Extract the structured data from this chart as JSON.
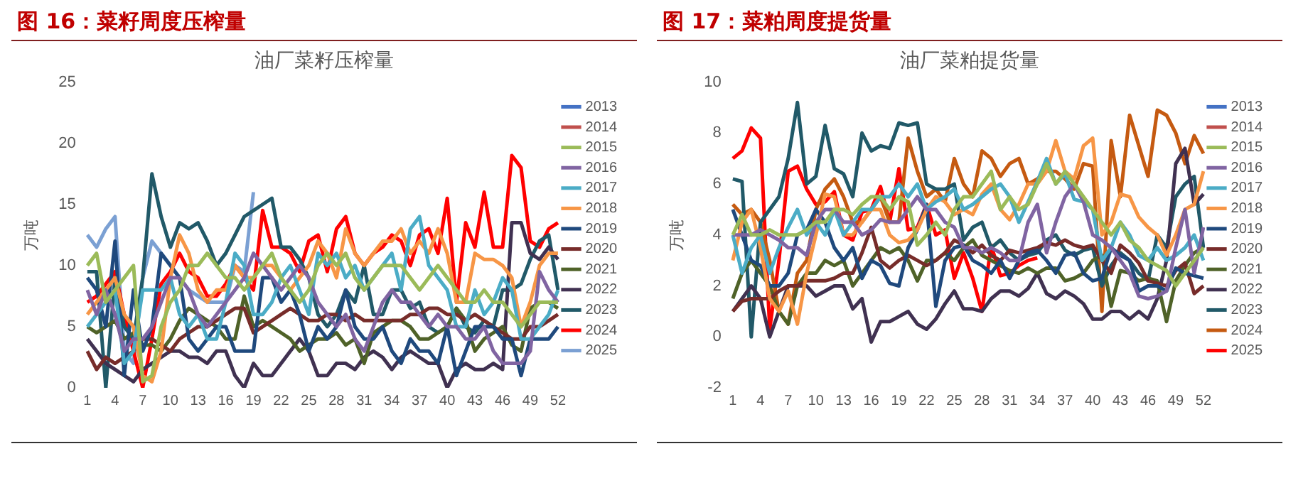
{
  "chart_data": [
    {
      "type": "line",
      "title": "油厂菜籽压榨量",
      "ylabel": "万吨",
      "annotations": [
        "图 16：菜籽周度压榨量"
      ],
      "categories": [
        "1",
        null,
        null,
        "4",
        null,
        null,
        "7",
        null,
        null,
        "10",
        null,
        null,
        "13",
        null,
        null,
        "16",
        null,
        null,
        "19",
        null,
        null,
        "22",
        null,
        null,
        "25",
        null,
        null,
        "28",
        null,
        null,
        "31",
        null,
        null,
        "34",
        null,
        null,
        "37",
        null,
        null,
        "40",
        null,
        null,
        "43",
        null,
        null,
        "46",
        null,
        null,
        "49",
        null,
        null,
        "52"
      ],
      "ylim": [
        0,
        25
      ],
      "yticks": [
        0,
        5,
        10,
        15,
        20,
        25
      ],
      "grid": false,
      "legend": "right",
      "marker": "none",
      "line_style": "solid",
      "series": [
        {
          "name": "2013",
          "color": "#4472c4",
          "values": [
            null,
            null,
            null,
            null,
            null,
            null,
            null,
            null,
            null,
            null,
            null,
            null,
            null,
            null,
            null,
            null,
            null,
            null,
            null,
            null,
            null,
            null,
            null,
            null,
            null,
            null,
            null,
            null,
            null,
            null,
            null,
            null,
            null,
            null,
            null,
            null,
            null,
            null,
            null,
            null,
            null,
            null,
            null,
            null,
            null,
            null,
            null,
            null,
            null,
            null,
            null,
            null
          ]
        },
        {
          "name": "2014",
          "color": "#c0504d",
          "values": [
            null,
            null,
            null,
            null,
            null,
            null,
            null,
            null,
            null,
            null,
            null,
            null,
            null,
            null,
            null,
            null,
            null,
            null,
            null,
            null,
            null,
            null,
            null,
            null,
            null,
            null,
            null,
            null,
            null,
            null,
            null,
            null,
            null,
            null,
            null,
            null,
            null,
            null,
            null,
            null,
            null,
            null,
            null,
            null,
            null,
            null,
            null,
            null,
            null,
            null,
            null,
            null
          ]
        },
        {
          "name": "2015",
          "color": "#9bbb59",
          "values": [
            10,
            11,
            7,
            8,
            9,
            10,
            0.5,
            1,
            5,
            7,
            8,
            10,
            10,
            11,
            10,
            9,
            9,
            8,
            9,
            10,
            11,
            9,
            8,
            7,
            8,
            10,
            11,
            10,
            11,
            9,
            8,
            9,
            10,
            10,
            10,
            9,
            8,
            9,
            10,
            9,
            8,
            7,
            7,
            8,
            7,
            7,
            6,
            5,
            6,
            7,
            7,
            7
          ]
        },
        {
          "name": "2016",
          "color": "#8064a2",
          "values": [
            8,
            6,
            8,
            6,
            3,
            4,
            4,
            5,
            7,
            9,
            9,
            8,
            6,
            5,
            6,
            7,
            8,
            9,
            11,
            10,
            9,
            8,
            9,
            10,
            9,
            7,
            6,
            5,
            6,
            4,
            3,
            5,
            7,
            8,
            7,
            7,
            6,
            5,
            6,
            5,
            5,
            4,
            4,
            5,
            3,
            2,
            2,
            2,
            3,
            9.5,
            8,
            7
          ]
        },
        {
          "name": "2017",
          "color": "#4bacc6",
          "values": [
            5,
            6,
            7,
            8,
            2,
            3,
            8,
            8,
            8,
            9,
            6,
            5,
            6,
            4,
            4,
            7,
            11,
            10,
            6,
            6,
            7,
            9,
            10,
            8,
            6,
            11,
            10,
            11,
            9,
            10,
            8,
            9,
            10,
            11,
            8,
            13,
            14,
            10,
            9,
            8,
            5,
            5,
            8,
            6,
            7,
            9,
            8,
            4,
            4,
            5,
            6,
            8
          ]
        },
        {
          "name": "2018",
          "color": "#f79646",
          "values": [
            6,
            7,
            8,
            9,
            6,
            5,
            1,
            0.5,
            3,
            9,
            12.5,
            11,
            8,
            7,
            8,
            8,
            10,
            9,
            9,
            10,
            10,
            9,
            8,
            9,
            10,
            12,
            11,
            9,
            13,
            11,
            10,
            11,
            12,
            12,
            13,
            11,
            12,
            11,
            13,
            11,
            7,
            7,
            11,
            10.5,
            10.5,
            10,
            9,
            5,
            7,
            10,
            11,
            11
          ]
        },
        {
          "name": "2019",
          "color": "#1f497d",
          "values": [
            9,
            8,
            5,
            12,
            1,
            8,
            3,
            5,
            11,
            10,
            9,
            4,
            3,
            4,
            5,
            5,
            3,
            3,
            3,
            9,
            9,
            7,
            8,
            6,
            3,
            5,
            4,
            5,
            8,
            5,
            4,
            4,
            5,
            3,
            2,
            4,
            3,
            3,
            2,
            5,
            1,
            3,
            5,
            5,
            5,
            4,
            4,
            1,
            4,
            4,
            4,
            5
          ]
        },
        {
          "name": "2020",
          "color": "#772c2a",
          "values": [
            3,
            1.5,
            2.5,
            2,
            2.5,
            3,
            4,
            4,
            3.5,
            3,
            4,
            4.5,
            5,
            5,
            5.5,
            6,
            6.5,
            6.5,
            4.5,
            5,
            5.5,
            6,
            6.5,
            6,
            5.5,
            5.5,
            6,
            6,
            5.5,
            6,
            5.5,
            5.5,
            5.5,
            5.5,
            5.5,
            6,
            6,
            6.5,
            6.5,
            6,
            6,
            5.5,
            6,
            5.5,
            5,
            4.5,
            4,
            4,
            5,
            5,
            5.5,
            6
          ]
        },
        {
          "name": "2021",
          "color": "#4f6228",
          "values": [
            5,
            4.5,
            5,
            5.5,
            4,
            4.5,
            3.5,
            3.5,
            3,
            4,
            5.5,
            6.5,
            6,
            5.5,
            5,
            4,
            4,
            7.5,
            5,
            5.5,
            5,
            4.5,
            4,
            3,
            3.5,
            4,
            4,
            4.5,
            3.5,
            4,
            2,
            4.5,
            5,
            5.5,
            5.5,
            5,
            4,
            4,
            4.5,
            5,
            6.5,
            5.5,
            3,
            4,
            4.5,
            5,
            3.5,
            3,
            6.5,
            7,
            7,
            6.5
          ]
        },
        {
          "name": "2022",
          "color": "#403151",
          "values": [
            4,
            3,
            2,
            1.5,
            1,
            0.5,
            1.5,
            2,
            2.5,
            3,
            3,
            2.5,
            2.5,
            2,
            3,
            3,
            1,
            0,
            2,
            1,
            1,
            2,
            3,
            4,
            3,
            1,
            1,
            2,
            2,
            1.5,
            2.5,
            3,
            2.5,
            1.5,
            2.5,
            3,
            2.5,
            2,
            2,
            0,
            1.5,
            2,
            1.5,
            1.5,
            2,
            1.5,
            13.5,
            13.5,
            11,
            10.5,
            11.5,
            10.5
          ]
        },
        {
          "name": "2023",
          "color": "#215968",
          "values": [
            9.5,
            9.5,
            0,
            9,
            5,
            4,
            9,
            17.5,
            14,
            11.5,
            13.5,
            13,
            13.5,
            12,
            10,
            11,
            12.5,
            14,
            14.5,
            15,
            15.5,
            11.5,
            11.5,
            10.5,
            9,
            6,
            5,
            6,
            8,
            7,
            10,
            6,
            6,
            8,
            8,
            6.5,
            7,
            5,
            4.5,
            5,
            6.5,
            5,
            4.5,
            5.5,
            5,
            8,
            8,
            8.5,
            10.5,
            12,
            12.5,
            8
          ]
        },
        {
          "name": "2024",
          "color": "#ff0000",
          "values": [
            7,
            7.5,
            8.5,
            9.5,
            6,
            3,
            0,
            4,
            8.5,
            9.5,
            11,
            9.5,
            9,
            7.5,
            7.5,
            8.5,
            10,
            9,
            8,
            14.5,
            11.5,
            11.5,
            11,
            9.5,
            12,
            12.5,
            9.5,
            13,
            14,
            11,
            10,
            11,
            11.5,
            12.5,
            12,
            10,
            12.5,
            13,
            11,
            15.5,
            7,
            13.5,
            11.5,
            16,
            11.5,
            11.5,
            19,
            18,
            12,
            11.5,
            13,
            13.5
          ]
        },
        {
          "name": "2025",
          "color": "#7ba0d3",
          "values": [
            12.5,
            11.5,
            13,
            14,
            3,
            2,
            9,
            12,
            11,
            10,
            9,
            8,
            7.5,
            7,
            7,
            7,
            10,
            9.5,
            16,
            null,
            null,
            null,
            null,
            null,
            null,
            null,
            null,
            null,
            null,
            null,
            null,
            null,
            null,
            null,
            null,
            null,
            null,
            null,
            null,
            null,
            null,
            null,
            null,
            null,
            null,
            null,
            null,
            null,
            null,
            null,
            null,
            null
          ]
        }
      ]
    },
    {
      "type": "line",
      "title": "油厂菜粕提货量",
      "ylabel": "万吨",
      "annotations": [
        "图 17：菜粕周度提货量"
      ],
      "categories": [
        "1",
        null,
        null,
        "4",
        null,
        null,
        "7",
        null,
        null,
        "10",
        null,
        null,
        "13",
        null,
        null,
        "16",
        null,
        null,
        "19",
        null,
        null,
        "22",
        null,
        null,
        "25",
        null,
        null,
        "28",
        null,
        null,
        "31",
        null,
        null,
        "34",
        null,
        null,
        "37",
        null,
        null,
        "40",
        null,
        null,
        "43",
        null,
        null,
        "46",
        null,
        null,
        "49",
        null,
        null,
        "52"
      ],
      "ylim": [
        -2,
        10
      ],
      "yticks": [
        -2,
        0,
        2,
        4,
        6,
        8,
        10
      ],
      "grid": false,
      "legend": "right",
      "marker": "none",
      "line_style": "solid",
      "series": [
        {
          "name": "2013",
          "color": "#4472c4",
          "values": [
            null,
            null,
            null,
            null,
            null,
            null,
            null,
            null,
            null,
            null,
            null,
            null,
            null,
            null,
            null,
            null,
            null,
            null,
            null,
            null,
            null,
            null,
            null,
            null,
            null,
            null,
            null,
            null,
            null,
            null,
            null,
            null,
            null,
            null,
            null,
            null,
            null,
            null,
            null,
            null,
            null,
            null,
            null,
            null,
            null,
            null,
            null,
            null,
            null,
            null,
            null,
            null
          ]
        },
        {
          "name": "2014",
          "color": "#c0504d",
          "values": [
            null,
            null,
            null,
            null,
            null,
            null,
            null,
            null,
            null,
            null,
            null,
            null,
            null,
            null,
            null,
            null,
            null,
            null,
            null,
            null,
            null,
            null,
            null,
            null,
            null,
            null,
            null,
            null,
            null,
            null,
            null,
            null,
            null,
            null,
            null,
            null,
            null,
            null,
            null,
            null,
            null,
            null,
            null,
            null,
            null,
            null,
            null,
            null,
            null,
            null,
            null,
            null
          ]
        },
        {
          "name": "2015",
          "color": "#9bbb59",
          "values": [
            4,
            4.8,
            4,
            4,
            4.2,
            4,
            4,
            4,
            4.2,
            4.5,
            4.5,
            5,
            5,
            4.8,
            5.2,
            5.5,
            5.5,
            5,
            5.5,
            5.3,
            3.6,
            4,
            4.5,
            4,
            5,
            5.5,
            5.5,
            6,
            6.5,
            5,
            5.5,
            5,
            5.2,
            6,
            6.8,
            6,
            6.5,
            6,
            5.5,
            5,
            4.5,
            4,
            4.5,
            3.8,
            3.5,
            3,
            2.8,
            2.6,
            2,
            2.5,
            3,
            3.5
          ]
        },
        {
          "name": "2016",
          "color": "#8064a2",
          "values": [
            4,
            4,
            4,
            4.2,
            4,
            3.8,
            3.5,
            3.5,
            3.2,
            4.5,
            5,
            5,
            4.5,
            4.5,
            4,
            4.2,
            4.6,
            4.5,
            4.5,
            5,
            5.5,
            5,
            5,
            4.5,
            4.3,
            3.5,
            3.5,
            3.3,
            3.5,
            3.3,
            3,
            3,
            4.5,
            5.2,
            3.3,
            4.5,
            5.5,
            6,
            5.3,
            4,
            3.8,
            3.5,
            3,
            2.5,
            1.6,
            1.5,
            1.6,
            1.8,
            3.5,
            5,
            2.5,
            4.3
          ]
        },
        {
          "name": "2017",
          "color": "#4bacc6",
          "values": [
            4,
            2.5,
            3.5,
            4,
            2.5,
            3.5,
            4.3,
            5,
            4,
            4.5,
            4,
            5,
            4,
            4.5,
            5,
            5,
            5.5,
            5.5,
            6,
            5.5,
            6,
            5,
            5.3,
            5.5,
            5.8,
            5,
            5.2,
            5.5,
            5.8,
            6,
            5.5,
            4.5,
            5.3,
            6.1,
            7,
            6,
            6.4,
            5.4,
            5.3,
            5,
            3,
            3.5,
            4.5,
            4,
            3.2,
            3,
            3.5,
            3,
            3.2,
            3.5,
            4,
            3
          ]
        },
        {
          "name": "2018",
          "color": "#f79646",
          "values": [
            3,
            4.5,
            5,
            3.5,
            1.5,
            1,
            1.8,
            0.5,
            2.5,
            4,
            5.6,
            5.5,
            4,
            4,
            4.5,
            5,
            5,
            4,
            3.7,
            3.8,
            4.2,
            5,
            5.5,
            5.3,
            4.8,
            5,
            4.8,
            5.6,
            6,
            5,
            4.6,
            5.2,
            6,
            6,
            6.5,
            7.7,
            6.5,
            6.2,
            7.5,
            7.8,
            4,
            4.5,
            5.6,
            5.5,
            4.7,
            4.3,
            4,
            3.2,
            4,
            5,
            5.2,
            6.5
          ]
        },
        {
          "name": "2019",
          "color": "#1f497d",
          "values": [
            5,
            4,
            3,
            2.8,
            2,
            2,
            2.5,
            4,
            4.2,
            5,
            4.5,
            3.5,
            3,
            3.5,
            2.3,
            3,
            2.8,
            2.1,
            2,
            3.5,
            4.2,
            5.2,
            1.2,
            3,
            3.5,
            3.6,
            3,
            2.8,
            2.5,
            3,
            2.3,
            3,
            3.3,
            3.4,
            3,
            2.5,
            3.2,
            3.3,
            2.5,
            2.2,
            2.3,
            3.5,
            3.2,
            3,
            1.8,
            2,
            2,
            1.8,
            2.7,
            2.5,
            2.4,
            2.3
          ]
        },
        {
          "name": "2020",
          "color": "#772c2a",
          "values": [
            1,
            1.4,
            1.5,
            1.5,
            1.5,
            1.8,
            2,
            2,
            2.2,
            2.2,
            2.2,
            2.3,
            2.5,
            2.5,
            3.3,
            4.3,
            3,
            2.7,
            3,
            3.2,
            3,
            2.8,
            3,
            3.3,
            3.8,
            3.6,
            3.3,
            3.6,
            3.2,
            3,
            3.4,
            3.3,
            3.4,
            3.5,
            3.7,
            3.6,
            3.8,
            3.6,
            3.5,
            3.6,
            3,
            2.5,
            3.6,
            3.3,
            2.9,
            2.2,
            2.1,
            2,
            2.6,
            2.9,
            1.7,
            2
          ]
        },
        {
          "name": "2021",
          "color": "#4f6228",
          "values": [
            1.5,
            2.5,
            3,
            2.5,
            2,
            1,
            0.5,
            2,
            2.5,
            2.5,
            3,
            2.8,
            3,
            2,
            2.5,
            3,
            3.5,
            3.3,
            3.5,
            3,
            2.2,
            3,
            3,
            3.3,
            3,
            3.5,
            3.8,
            3.2,
            3,
            2.8,
            2.6,
            2.5,
            2.7,
            2.5,
            2.7,
            2.7,
            2.2,
            2.3,
            2.5,
            3,
            3.2,
            1.2,
            2.6,
            2.5,
            2.2,
            2.3,
            2.2,
            0.6,
            2.2,
            2.8,
            3.3,
            3.5
          ]
        },
        {
          "name": "2022",
          "color": "#403151",
          "values": [
            1,
            1.5,
            2,
            1.5,
            0,
            1,
            2,
            2,
            2,
            1.6,
            1.8,
            2,
            2,
            1.1,
            1.5,
            -0.2,
            0.6,
            0.6,
            0.8,
            1,
            0.5,
            0.3,
            0.7,
            1.3,
            1.8,
            1.1,
            1.1,
            1,
            1.5,
            1.8,
            1.8,
            1.6,
            1.9,
            2.5,
            1.7,
            1.5,
            1.8,
            1.6,
            1.3,
            0.7,
            0.7,
            1,
            1,
            0.7,
            1,
            0.7,
            1.5,
            3,
            6.8,
            7.4,
            5.2,
            5.6
          ]
        },
        {
          "name": "2023",
          "color": "#215968",
          "values": [
            6.2,
            6.1,
            0,
            4.5,
            5,
            5.5,
            7,
            9.2,
            6,
            6.3,
            8.3,
            6.6,
            6.4,
            5.5,
            8,
            7.3,
            7.5,
            7.4,
            8.4,
            8.3,
            8.4,
            6,
            5.8,
            5.8,
            6,
            3.8,
            4.3,
            4.5,
            3.5,
            3.8,
            3.3,
            3,
            3.2,
            3.3,
            3.8,
            4,
            3.4,
            3.2,
            3.4,
            3.5,
            2,
            2.8,
            3.3,
            3,
            2.5,
            2.2,
            4,
            3.5,
            5.5,
            6,
            6.3,
            3.5
          ]
        },
        {
          "name": "2024",
          "color": "#c55a11",
          "values": [
            5.2,
            4.8,
            5,
            4.5,
            3,
            1,
            0.5,
            2.5,
            3,
            5,
            5.8,
            6.2,
            5.5,
            4.5,
            4.5,
            5,
            5.5,
            4.5,
            4.5,
            7.8,
            6.5,
            5.5,
            5.8,
            5.3,
            7,
            6,
            5.5,
            7.3,
            7,
            6.3,
            6.8,
            7,
            6,
            6.2,
            6.5,
            6.5,
            6.2,
            5.8,
            6.8,
            6.7,
            1,
            7.7,
            5.5,
            8.7,
            7.5,
            6.3,
            8.9,
            8.7,
            8,
            6.8,
            7.9,
            7.2
          ]
        },
        {
          "name": "2025",
          "color": "#ff0000",
          "values": [
            7,
            7.3,
            8.2,
            7.8,
            0.3,
            3,
            6.5,
            6.7,
            5.8,
            5.2,
            5.3,
            5.7,
            4,
            3.8,
            4.9,
            5,
            5.9,
            4.5,
            6.6,
            4.2,
            4.3,
            5.2,
            4,
            4.2,
            2.3,
            3.3,
            2.3,
            1,
            3.6,
            2.4,
            2.5,
            2.8,
            3,
            3.1,
            null,
            null,
            null,
            null,
            null,
            null,
            null,
            null,
            null,
            null,
            null,
            null,
            null,
            null,
            null,
            null,
            null,
            null
          ]
        }
      ]
    }
  ]
}
